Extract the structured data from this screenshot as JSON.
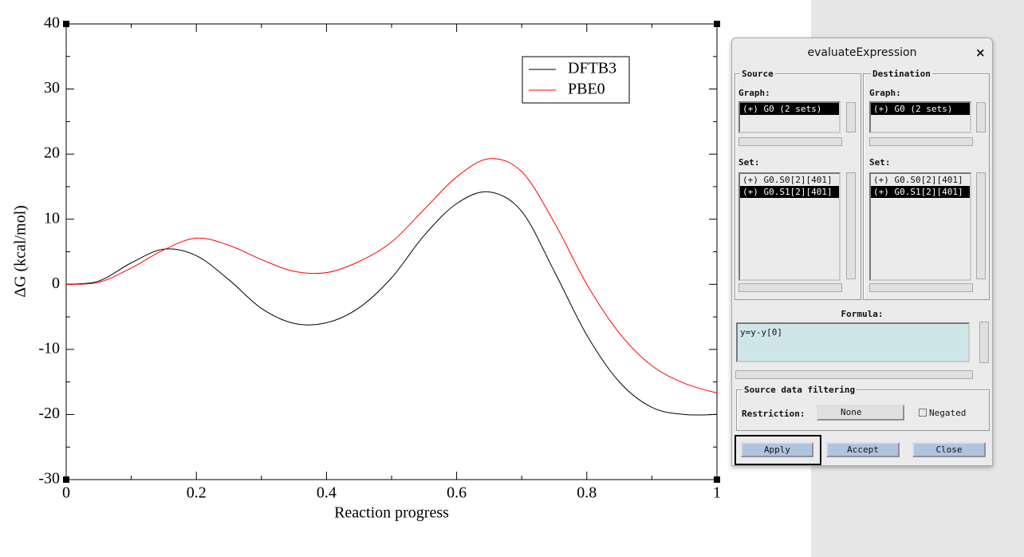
{
  "chart_data": {
    "type": "line",
    "xlabel": "Reaction progress",
    "ylabel": "ΔG (kcal/mol)",
    "x": [
      0,
      0.05,
      0.1,
      0.15,
      0.2,
      0.25,
      0.3,
      0.35,
      0.4,
      0.45,
      0.5,
      0.55,
      0.6,
      0.65,
      0.7,
      0.75,
      0.8,
      0.85,
      0.9,
      0.95,
      1
    ],
    "series": [
      {
        "name": "DFTB3",
        "color": "#000000",
        "values": [
          0,
          0.5,
          3.3,
          5.4,
          4.4,
          0.7,
          -3.7,
          -6,
          -5.9,
          -3.6,
          1,
          7.5,
          12.4,
          14.2,
          11.2,
          2,
          -7.8,
          -15,
          -18.9,
          -20,
          -20
        ]
      },
      {
        "name": "PBE0",
        "color": "#ff0000",
        "values": [
          0,
          0.3,
          2.5,
          5.3,
          7.1,
          6,
          3.8,
          2,
          1.8,
          3.5,
          6.5,
          11.5,
          16.5,
          19.3,
          17.3,
          9.5,
          0,
          -7.5,
          -12.5,
          -15.2,
          -16.7
        ]
      }
    ],
    "xlim": [
      0,
      1
    ],
    "xticks": [
      0,
      0.2,
      0.4,
      0.6,
      0.8,
      1
    ],
    "xminorticks": [
      0.1,
      0.3,
      0.5,
      0.7,
      0.9
    ],
    "ylim": [
      -30,
      40
    ],
    "yticks": [
      -30,
      -20,
      -10,
      0,
      10,
      20,
      30,
      40
    ],
    "yminorticks": [
      -25,
      -15,
      -5,
      5,
      15,
      25,
      35
    ],
    "legend": "top-right"
  },
  "dialog": {
    "title": "evaluateExpression",
    "close_icon": "×",
    "source": {
      "title": "Source",
      "graph_label": "Graph:",
      "graphs": [
        "(+) G0 (2 sets)"
      ],
      "set_label": "Set:",
      "sets": [
        "(+) G0.S0[2][401]",
        "(+) G0.S1[2][401]"
      ]
    },
    "destination": {
      "title": "Destination",
      "graph_label": "Graph:",
      "graphs": [
        "(+) G0 (2 sets)"
      ],
      "set_label": "Set:",
      "sets": [
        "(+) G0.S0[2][401]",
        "(+) G0.S1[2][401]"
      ]
    },
    "formula_label": "Formula:",
    "formula": "y=y-y[0]",
    "filtering": {
      "title": "Source data filtering",
      "restriction_label": "Restriction:",
      "restriction": "None",
      "negated": "Negated"
    },
    "buttons": [
      "Apply",
      "Accept",
      "Close"
    ]
  }
}
